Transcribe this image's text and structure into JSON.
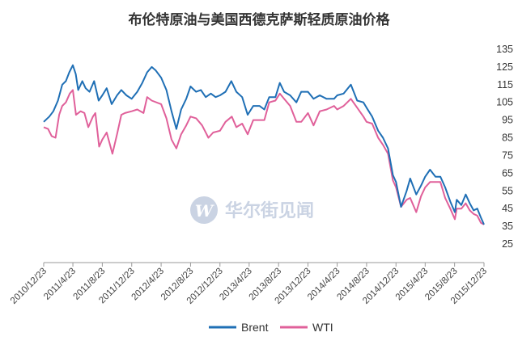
{
  "watermark": {
    "text": "华尔街见闻",
    "logo_letter": "W",
    "color": "#c5cfe0"
  },
  "chart_data": {
    "type": "line",
    "title": "布伦特原油与美国西德克萨斯轻质原油价格",
    "xlabel": "",
    "ylabel": "",
    "ylim": [
      25,
      135
    ],
    "yticks": [
      "25",
      "35",
      "45",
      "55",
      "65",
      "75",
      "85",
      "95",
      "105",
      "115",
      "125",
      "135"
    ],
    "xlim": [
      "2010-12-23",
      "2015-12-23"
    ],
    "xticks": [
      "2010/12/23",
      "2011/4/23",
      "2011/8/23",
      "2011/12/23",
      "2012/4/23",
      "2012/8/23",
      "2012/12/23",
      "2013/4/23",
      "2013/8/23",
      "2013/12/23",
      "2014/4/23",
      "2014/8/23",
      "2014/12/23",
      "2015/4/23",
      "2015/8/23",
      "2015/12/23"
    ],
    "grid": false,
    "legend_position": "bottom",
    "series": [
      {
        "name": "Brent",
        "color": "#1f6fb5",
        "points": [
          [
            "2010-12-23",
            94
          ],
          [
            "2011-01-15",
            97
          ],
          [
            "2011-02-01",
            100
          ],
          [
            "2011-02-20",
            106
          ],
          [
            "2011-03-10",
            115
          ],
          [
            "2011-03-25",
            117
          ],
          [
            "2011-04-08",
            122
          ],
          [
            "2011-04-23",
            126
          ],
          [
            "2011-05-05",
            121
          ],
          [
            "2011-05-15",
            112
          ],
          [
            "2011-06-01",
            117
          ],
          [
            "2011-06-15",
            113
          ],
          [
            "2011-07-01",
            111
          ],
          [
            "2011-07-20",
            117
          ],
          [
            "2011-08-08",
            106
          ],
          [
            "2011-08-23",
            109
          ],
          [
            "2011-09-10",
            113
          ],
          [
            "2011-10-01",
            104
          ],
          [
            "2011-10-23",
            109
          ],
          [
            "2011-11-10",
            112
          ],
          [
            "2011-12-01",
            109
          ],
          [
            "2011-12-23",
            107
          ],
          [
            "2012-01-15",
            111
          ],
          [
            "2012-02-05",
            116
          ],
          [
            "2012-02-25",
            122
          ],
          [
            "2012-03-15",
            125
          ],
          [
            "2012-04-01",
            123
          ],
          [
            "2012-04-23",
            119
          ],
          [
            "2012-05-15",
            112
          ],
          [
            "2012-06-05",
            100
          ],
          [
            "2012-06-25",
            90
          ],
          [
            "2012-07-15",
            101
          ],
          [
            "2012-08-05",
            107
          ],
          [
            "2012-08-23",
            114
          ],
          [
            "2012-09-15",
            111
          ],
          [
            "2012-10-05",
            112
          ],
          [
            "2012-10-25",
            108
          ],
          [
            "2012-11-15",
            110
          ],
          [
            "2012-12-05",
            108
          ],
          [
            "2012-12-23",
            109
          ],
          [
            "2013-01-15",
            111
          ],
          [
            "2013-02-08",
            117
          ],
          [
            "2013-03-01",
            111
          ],
          [
            "2013-03-25",
            108
          ],
          [
            "2013-04-17",
            98
          ],
          [
            "2013-05-10",
            103
          ],
          [
            "2013-06-05",
            103
          ],
          [
            "2013-06-25",
            101
          ],
          [
            "2013-07-15",
            108
          ],
          [
            "2013-08-10",
            108
          ],
          [
            "2013-08-28",
            116
          ],
          [
            "2013-09-15",
            111
          ],
          [
            "2013-10-10",
            109
          ],
          [
            "2013-11-05",
            105
          ],
          [
            "2013-11-25",
            111
          ],
          [
            "2013-12-23",
            111
          ],
          [
            "2014-01-15",
            107
          ],
          [
            "2014-02-10",
            109
          ],
          [
            "2014-03-10",
            107
          ],
          [
            "2014-04-10",
            107
          ],
          [
            "2014-04-23",
            109
          ],
          [
            "2014-05-20",
            110
          ],
          [
            "2014-06-19",
            115
          ],
          [
            "2014-07-15",
            106
          ],
          [
            "2014-08-10",
            105
          ],
          [
            "2014-08-23",
            102
          ],
          [
            "2014-09-15",
            97
          ],
          [
            "2014-10-10",
            89
          ],
          [
            "2014-10-30",
            85
          ],
          [
            "2014-11-20",
            79
          ],
          [
            "2014-12-10",
            64
          ],
          [
            "2014-12-23",
            60
          ],
          [
            "2015-01-13",
            46
          ],
          [
            "2015-02-05",
            55
          ],
          [
            "2015-02-20",
            62
          ],
          [
            "2015-03-17",
            53
          ],
          [
            "2015-04-06",
            58
          ],
          [
            "2015-04-23",
            63
          ],
          [
            "2015-05-13",
            67
          ],
          [
            "2015-06-05",
            63
          ],
          [
            "2015-06-25",
            63
          ],
          [
            "2015-07-15",
            57
          ],
          [
            "2015-08-05",
            49
          ],
          [
            "2015-08-24",
            43
          ],
          [
            "2015-09-01",
            50
          ],
          [
            "2015-09-20",
            47
          ],
          [
            "2015-10-08",
            53
          ],
          [
            "2015-10-25",
            48
          ],
          [
            "2015-11-10",
            44
          ],
          [
            "2015-11-25",
            45
          ],
          [
            "2015-12-10",
            40
          ],
          [
            "2015-12-23",
            36
          ]
        ]
      },
      {
        "name": "WTI",
        "color": "#e0609a",
        "points": [
          [
            "2010-12-23",
            91
          ],
          [
            "2011-01-10",
            90
          ],
          [
            "2011-01-25",
            86
          ],
          [
            "2011-02-10",
            85
          ],
          [
            "2011-02-25",
            98
          ],
          [
            "2011-03-10",
            103
          ],
          [
            "2011-03-25",
            105
          ],
          [
            "2011-04-10",
            110
          ],
          [
            "2011-04-23",
            112
          ],
          [
            "2011-05-06",
            98
          ],
          [
            "2011-05-25",
            100
          ],
          [
            "2011-06-10",
            99
          ],
          [
            "2011-06-26",
            91
          ],
          [
            "2011-07-15",
            97
          ],
          [
            "2011-07-25",
            99
          ],
          [
            "2011-08-10",
            80
          ],
          [
            "2011-08-23",
            84
          ],
          [
            "2011-09-10",
            88
          ],
          [
            "2011-10-04",
            76
          ],
          [
            "2011-10-23",
            87
          ],
          [
            "2011-11-10",
            98
          ],
          [
            "2011-11-25",
            99
          ],
          [
            "2011-12-23",
            100
          ],
          [
            "2012-01-15",
            101
          ],
          [
            "2012-02-10",
            99
          ],
          [
            "2012-02-25",
            108
          ],
          [
            "2012-03-15",
            106
          ],
          [
            "2012-04-23",
            104
          ],
          [
            "2012-05-15",
            96
          ],
          [
            "2012-06-05",
            84
          ],
          [
            "2012-06-25",
            79
          ],
          [
            "2012-07-15",
            87
          ],
          [
            "2012-08-05",
            92
          ],
          [
            "2012-08-23",
            97
          ],
          [
            "2012-09-15",
            96
          ],
          [
            "2012-10-10",
            92
          ],
          [
            "2012-11-05",
            85
          ],
          [
            "2012-11-25",
            88
          ],
          [
            "2012-12-23",
            89
          ],
          [
            "2013-01-15",
            94
          ],
          [
            "2013-02-10",
            97
          ],
          [
            "2013-03-01",
            91
          ],
          [
            "2013-03-25",
            93
          ],
          [
            "2013-04-17",
            87
          ],
          [
            "2013-05-10",
            95
          ],
          [
            "2013-06-10",
            95
          ],
          [
            "2013-06-25",
            95
          ],
          [
            "2013-07-15",
            105
          ],
          [
            "2013-08-10",
            106
          ],
          [
            "2013-08-28",
            110
          ],
          [
            "2013-09-15",
            107
          ],
          [
            "2013-10-10",
            103
          ],
          [
            "2013-11-05",
            94
          ],
          [
            "2013-11-25",
            94
          ],
          [
            "2013-12-23",
            99
          ],
          [
            "2014-01-15",
            92
          ],
          [
            "2014-02-10",
            100
          ],
          [
            "2014-03-10",
            101
          ],
          [
            "2014-04-10",
            103
          ],
          [
            "2014-04-23",
            101
          ],
          [
            "2014-05-20",
            103
          ],
          [
            "2014-06-19",
            107
          ],
          [
            "2014-07-15",
            102
          ],
          [
            "2014-08-10",
            97
          ],
          [
            "2014-08-23",
            94
          ],
          [
            "2014-09-15",
            93
          ],
          [
            "2014-10-10",
            85
          ],
          [
            "2014-10-30",
            81
          ],
          [
            "2014-11-20",
            76
          ],
          [
            "2014-12-10",
            61
          ],
          [
            "2014-12-23",
            57
          ],
          [
            "2015-01-13",
            46
          ],
          [
            "2015-02-05",
            50
          ],
          [
            "2015-02-20",
            51
          ],
          [
            "2015-03-17",
            43
          ],
          [
            "2015-04-06",
            52
          ],
          [
            "2015-04-23",
            57
          ],
          [
            "2015-05-13",
            60
          ],
          [
            "2015-06-05",
            60
          ],
          [
            "2015-06-25",
            60
          ],
          [
            "2015-07-15",
            51
          ],
          [
            "2015-08-05",
            45
          ],
          [
            "2015-08-24",
            39
          ],
          [
            "2015-09-01",
            45
          ],
          [
            "2015-09-20",
            45
          ],
          [
            "2015-10-08",
            48
          ],
          [
            "2015-10-25",
            44
          ],
          [
            "2015-11-10",
            42
          ],
          [
            "2015-11-25",
            41
          ],
          [
            "2015-12-10",
            37
          ],
          [
            "2015-12-23",
            36
          ]
        ]
      }
    ]
  }
}
